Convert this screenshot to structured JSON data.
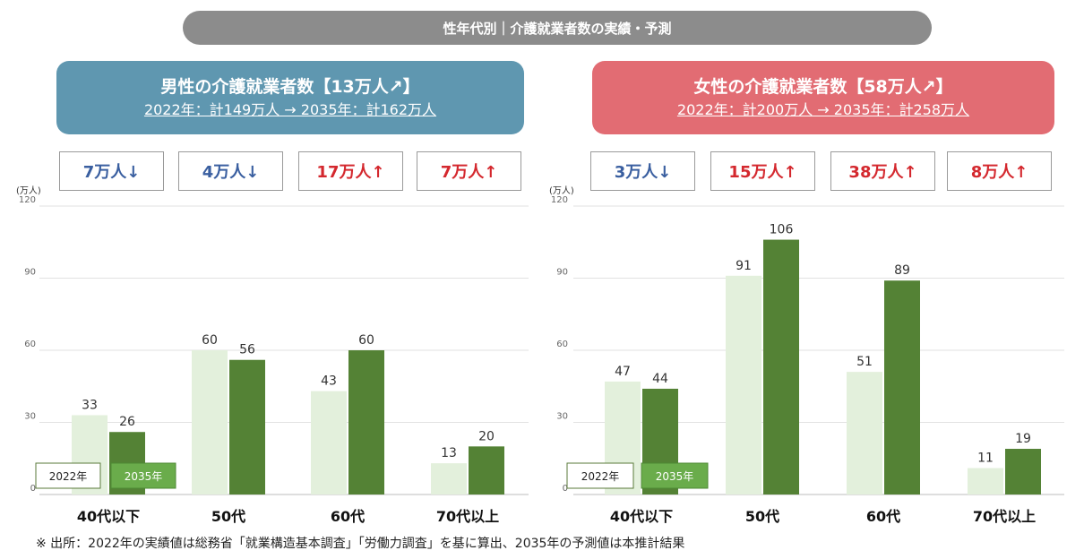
{
  "title": "性年代別｜介護就業者数の実績・予測",
  "panels": [
    {
      "id": "male",
      "header_title": "男性の介護就業者数【13万人↗】",
      "header_sub": "2022年：計149万人 → 2035年：計162万人",
      "changes": [
        {
          "text": "7万人↓",
          "dir": "dec"
        },
        {
          "text": "4万人↓",
          "dir": "dec"
        },
        {
          "text": "17万人↑",
          "dir": "inc"
        },
        {
          "text": "7万人↑",
          "dir": "inc"
        }
      ]
    },
    {
      "id": "female",
      "header_title": "女性の介護就業者数【58万人↗】",
      "header_sub": "2022年：計200万人 → 2035年：計258万人",
      "changes": [
        {
          "text": "3万人↓",
          "dir": "dec"
        },
        {
          "text": "15万人↑",
          "dir": "inc"
        },
        {
          "text": "38万人↑",
          "dir": "inc"
        },
        {
          "text": "8万人↑",
          "dir": "inc"
        }
      ]
    }
  ],
  "chart_data": [
    {
      "type": "bar",
      "unit_label": "(万人)",
      "categories": [
        "40代以下",
        "50代",
        "60代",
        "70代以上"
      ],
      "series": [
        {
          "name": "2022年",
          "values": [
            33,
            60,
            43,
            13
          ],
          "color": "#e3f0dc"
        },
        {
          "name": "2035年",
          "values": [
            26,
            56,
            60,
            20
          ],
          "color": "#548235"
        }
      ],
      "yticks": [
        0,
        30,
        60,
        90,
        120
      ],
      "ylim": [
        0,
        120
      ],
      "grid": true,
      "legend": "bottom-left"
    },
    {
      "type": "bar",
      "unit_label": "(万人)",
      "categories": [
        "40代以下",
        "50代",
        "60代",
        "70代以上"
      ],
      "series": [
        {
          "name": "2022年",
          "values": [
            47,
            91,
            51,
            11
          ],
          "color": "#e3f0dc"
        },
        {
          "name": "2035年",
          "values": [
            44,
            106,
            89,
            19
          ],
          "color": "#548235"
        }
      ],
      "yticks": [
        0,
        30,
        60,
        90,
        120
      ],
      "ylim": [
        0,
        120
      ],
      "grid": true,
      "legend": "bottom-left"
    }
  ],
  "footnote": "※ 出所：2022年の実績値は総務省「就業構造基本調査」「労働力調査」を基に算出、2035年の予測値は本推計結果"
}
